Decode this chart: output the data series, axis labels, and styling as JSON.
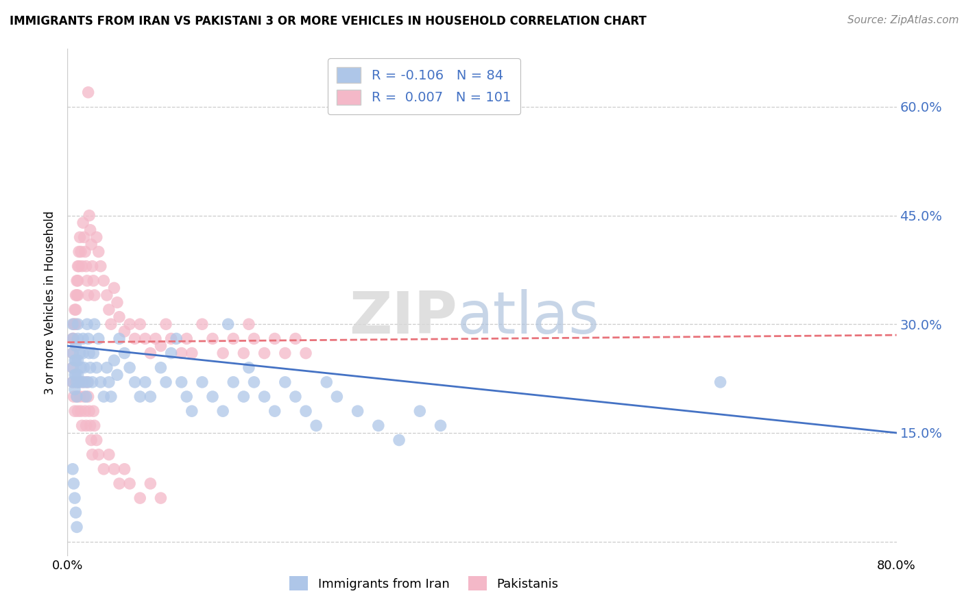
{
  "title": "IMMIGRANTS FROM IRAN VS PAKISTANI 3 OR MORE VEHICLES IN HOUSEHOLD CORRELATION CHART",
  "source": "Source: ZipAtlas.com",
  "ylabel": "3 or more Vehicles in Household",
  "ytick_values": [
    0.0,
    0.15,
    0.3,
    0.45,
    0.6
  ],
  "xlim": [
    0.0,
    0.8
  ],
  "ylim": [
    -0.02,
    0.68
  ],
  "legend_iran_R": "-0.106",
  "legend_iran_N": "84",
  "legend_pak_R": "0.007",
  "legend_pak_N": "101",
  "iran_color": "#aec6e8",
  "pak_color": "#f4b8c8",
  "iran_line_color": "#4472c4",
  "pak_line_color": "#e8727a",
  "watermark_zip": "ZIP",
  "watermark_atlas": "atlas",
  "iran_label": "Immigrants from Iran",
  "pak_label": "Pakistanis",
  "iran_x": [
    0.005,
    0.005,
    0.005,
    0.005,
    0.005,
    0.007,
    0.007,
    0.007,
    0.008,
    0.008,
    0.008,
    0.009,
    0.009,
    0.01,
    0.01,
    0.01,
    0.01,
    0.011,
    0.012,
    0.013,
    0.014,
    0.015,
    0.015,
    0.016,
    0.017,
    0.018,
    0.019,
    0.02,
    0.02,
    0.021,
    0.022,
    0.024,
    0.025,
    0.026,
    0.028,
    0.03,
    0.032,
    0.035,
    0.038,
    0.04,
    0.042,
    0.045,
    0.048,
    0.05,
    0.055,
    0.06,
    0.065,
    0.07,
    0.075,
    0.08,
    0.09,
    0.095,
    0.1,
    0.105,
    0.11,
    0.115,
    0.12,
    0.13,
    0.14,
    0.15,
    0.155,
    0.16,
    0.17,
    0.175,
    0.18,
    0.19,
    0.2,
    0.21,
    0.22,
    0.23,
    0.24,
    0.25,
    0.26,
    0.28,
    0.3,
    0.32,
    0.34,
    0.36,
    0.63,
    0.005,
    0.006,
    0.007,
    0.008,
    0.009
  ],
  "iran_y": [
    0.3,
    0.28,
    0.26,
    0.24,
    0.22,
    0.25,
    0.23,
    0.21,
    0.27,
    0.25,
    0.23,
    0.22,
    0.2,
    0.3,
    0.28,
    0.25,
    0.23,
    0.22,
    0.26,
    0.24,
    0.22,
    0.28,
    0.26,
    0.24,
    0.22,
    0.2,
    0.3,
    0.28,
    0.22,
    0.26,
    0.24,
    0.22,
    0.26,
    0.3,
    0.24,
    0.28,
    0.22,
    0.2,
    0.24,
    0.22,
    0.2,
    0.25,
    0.23,
    0.28,
    0.26,
    0.24,
    0.22,
    0.2,
    0.22,
    0.2,
    0.24,
    0.22,
    0.26,
    0.28,
    0.22,
    0.2,
    0.18,
    0.22,
    0.2,
    0.18,
    0.3,
    0.22,
    0.2,
    0.24,
    0.22,
    0.2,
    0.18,
    0.22,
    0.2,
    0.18,
    0.16,
    0.22,
    0.2,
    0.18,
    0.16,
    0.14,
    0.18,
    0.16,
    0.22,
    0.1,
    0.08,
    0.06,
    0.04,
    0.02
  ],
  "pak_x": [
    0.005,
    0.005,
    0.005,
    0.005,
    0.006,
    0.006,
    0.007,
    0.007,
    0.008,
    0.008,
    0.008,
    0.009,
    0.009,
    0.01,
    0.01,
    0.01,
    0.011,
    0.011,
    0.012,
    0.013,
    0.014,
    0.015,
    0.016,
    0.017,
    0.018,
    0.019,
    0.02,
    0.021,
    0.022,
    0.023,
    0.024,
    0.025,
    0.026,
    0.028,
    0.03,
    0.032,
    0.035,
    0.038,
    0.04,
    0.042,
    0.045,
    0.048,
    0.05,
    0.055,
    0.06,
    0.065,
    0.07,
    0.075,
    0.08,
    0.085,
    0.09,
    0.095,
    0.1,
    0.11,
    0.115,
    0.12,
    0.13,
    0.14,
    0.15,
    0.16,
    0.17,
    0.175,
    0.18,
    0.19,
    0.2,
    0.21,
    0.22,
    0.23,
    0.006,
    0.007,
    0.008,
    0.009,
    0.01,
    0.011,
    0.012,
    0.013,
    0.014,
    0.015,
    0.016,
    0.017,
    0.018,
    0.019,
    0.02,
    0.021,
    0.022,
    0.023,
    0.024,
    0.025,
    0.026,
    0.028,
    0.03,
    0.035,
    0.04,
    0.045,
    0.05,
    0.055,
    0.06,
    0.07,
    0.08,
    0.09,
    0.02
  ],
  "pak_y": [
    0.28,
    0.26,
    0.24,
    0.22,
    0.3,
    0.28,
    0.32,
    0.3,
    0.34,
    0.32,
    0.3,
    0.36,
    0.34,
    0.38,
    0.36,
    0.34,
    0.4,
    0.38,
    0.42,
    0.4,
    0.38,
    0.44,
    0.42,
    0.4,
    0.38,
    0.36,
    0.34,
    0.45,
    0.43,
    0.41,
    0.38,
    0.36,
    0.34,
    0.42,
    0.4,
    0.38,
    0.36,
    0.34,
    0.32,
    0.3,
    0.35,
    0.33,
    0.31,
    0.29,
    0.3,
    0.28,
    0.3,
    0.28,
    0.26,
    0.28,
    0.27,
    0.3,
    0.28,
    0.26,
    0.28,
    0.26,
    0.3,
    0.28,
    0.26,
    0.28,
    0.26,
    0.3,
    0.28,
    0.26,
    0.28,
    0.26,
    0.28,
    0.26,
    0.2,
    0.18,
    0.22,
    0.2,
    0.18,
    0.22,
    0.2,
    0.18,
    0.16,
    0.22,
    0.2,
    0.18,
    0.16,
    0.22,
    0.2,
    0.18,
    0.16,
    0.14,
    0.12,
    0.18,
    0.16,
    0.14,
    0.12,
    0.1,
    0.12,
    0.1,
    0.08,
    0.1,
    0.08,
    0.06,
    0.08,
    0.06,
    0.62
  ]
}
